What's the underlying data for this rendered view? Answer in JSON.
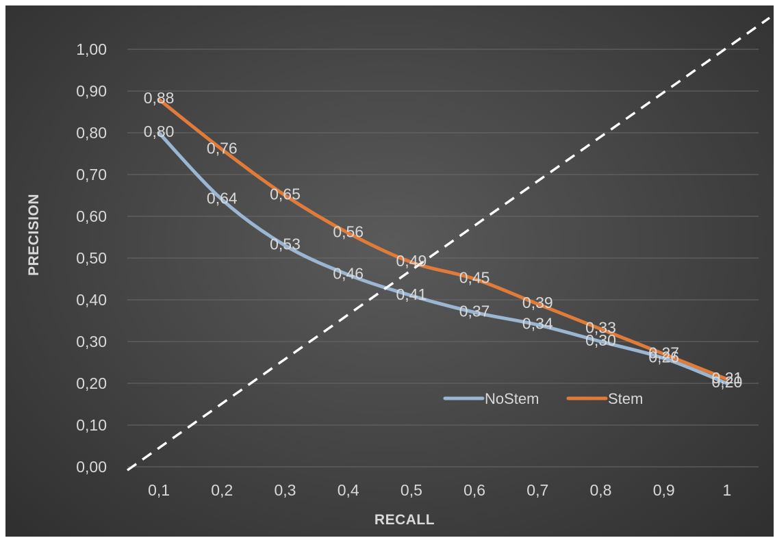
{
  "chart_data": {
    "type": "line",
    "title": "",
    "xlabel": "RECALL",
    "ylabel": "PRECISION",
    "categories": [
      "0,1",
      "0,2",
      "0,3",
      "0,4",
      "0,5",
      "0,6",
      "0,7",
      "0,8",
      "0,9",
      "1"
    ],
    "x": [
      0.1,
      0.2,
      0.3,
      0.4,
      0.5,
      0.6,
      0.7,
      0.8,
      0.9,
      1.0
    ],
    "ylim": [
      0,
      1
    ],
    "yticks": [
      "0,00",
      "0,10",
      "0,20",
      "0,30",
      "0,40",
      "0,50",
      "0,60",
      "0,70",
      "0,80",
      "0,90",
      "1,00"
    ],
    "grid": true,
    "legend_position": "bottom-right inside plot",
    "series": [
      {
        "name": "NoStem",
        "color": "#9ab6d3",
        "values": [
          0.8,
          0.64,
          0.53,
          0.46,
          0.41,
          0.37,
          0.34,
          0.3,
          0.26,
          0.2
        ],
        "labels": [
          "0,80",
          "0,64",
          "0,53",
          "0,46",
          "0,41",
          "0,37",
          "0,34",
          "0,30",
          "0,26",
          "0,20"
        ]
      },
      {
        "name": "Stem",
        "color": "#e07b39",
        "values": [
          0.88,
          0.76,
          0.65,
          0.56,
          0.49,
          0.45,
          0.39,
          0.33,
          0.27,
          0.21
        ],
        "labels": [
          "0,88",
          "0,76",
          "0,65",
          "0,56",
          "0,49",
          "0,45",
          "0,39",
          "0,33",
          "0,27",
          "0,21"
        ]
      }
    ],
    "reference_line": {
      "style": "dashed",
      "color": "#ffffff"
    }
  }
}
